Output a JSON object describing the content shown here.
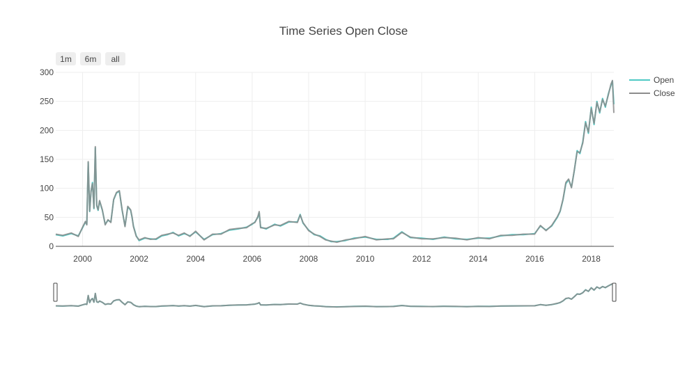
{
  "chart_data": {
    "type": "line",
    "title": "Time Series Open Close",
    "xlabel": "",
    "ylabel": "",
    "xlim": [
      1999.05,
      2018.8
    ],
    "ylim": [
      0,
      300
    ],
    "x_ticks": [
      "2000",
      "2002",
      "2004",
      "2006",
      "2008",
      "2010",
      "2012",
      "2014",
      "2016",
      "2018"
    ],
    "y_ticks": [
      "0",
      "50",
      "100",
      "150",
      "200",
      "250",
      "300"
    ],
    "grid": true,
    "legend": "top-right",
    "range_buttons": [
      "1m",
      "6m",
      "all"
    ],
    "range_slider": true,
    "x": [
      1999.05,
      1999.3,
      1999.6,
      1999.85,
      2000.0,
      2000.1,
      2000.15,
      2000.2,
      2000.25,
      2000.3,
      2000.35,
      2000.4,
      2000.45,
      2000.5,
      2000.55,
      2000.6,
      2000.7,
      2000.8,
      2000.9,
      2001.0,
      2001.1,
      2001.2,
      2001.3,
      2001.4,
      2001.5,
      2001.6,
      2001.7,
      2001.75,
      2001.8,
      2001.9,
      2002.0,
      2002.2,
      2002.4,
      2002.6,
      2002.8,
      2003.0,
      2003.2,
      2003.4,
      2003.6,
      2003.8,
      2004.0,
      2004.3,
      2004.6,
      2004.9,
      2005.2,
      2005.5,
      2005.8,
      2006.0,
      2006.1,
      2006.2,
      2006.25,
      2006.3,
      2006.5,
      2006.8,
      2007.0,
      2007.3,
      2007.6,
      2007.7,
      2007.8,
      2008.0,
      2008.2,
      2008.4,
      2008.6,
      2008.8,
      2009.0,
      2009.3,
      2009.6,
      2010.0,
      2010.4,
      2010.8,
      2011.0,
      2011.3,
      2011.6,
      2012.0,
      2012.4,
      2012.8,
      2013.2,
      2013.6,
      2014.0,
      2014.4,
      2014.8,
      2015.2,
      2015.6,
      2016.0,
      2016.2,
      2016.4,
      2016.6,
      2016.8,
      2016.9,
      2017.0,
      2017.1,
      2017.2,
      2017.3,
      2017.4,
      2017.5,
      2017.6,
      2017.7,
      2017.8,
      2017.9,
      2018.0,
      2018.1,
      2018.2,
      2018.3,
      2018.4,
      2018.5,
      2018.6,
      2018.7,
      2018.75,
      2018.8
    ],
    "series": [
      {
        "name": "Open",
        "color": "#4ec9c4",
        "values": [
          20,
          18,
          22,
          18,
          32,
          42,
          38,
          145,
          60,
          95,
          110,
          65,
          170,
          70,
          62,
          78,
          62,
          38,
          45,
          42,
          80,
          92,
          95,
          62,
          35,
          68,
          62,
          50,
          35,
          18,
          10,
          14,
          13,
          12,
          18,
          20,
          24,
          18,
          22,
          18,
          25,
          12,
          20,
          22,
          28,
          30,
          33,
          38,
          42,
          50,
          58,
          33,
          30,
          38,
          35,
          42,
          42,
          55,
          40,
          28,
          20,
          18,
          12,
          8,
          8,
          10,
          14,
          16,
          12,
          12,
          14,
          25,
          15,
          14,
          12,
          16,
          13,
          12,
          14,
          14,
          18,
          20,
          20,
          22,
          35,
          28,
          35,
          50,
          60,
          80,
          108,
          115,
          102,
          130,
          165,
          160,
          180,
          215,
          195,
          240,
          210,
          250,
          230,
          255,
          240,
          262,
          278,
          285,
          245
        ]
      },
      {
        "name": "Close",
        "color": "#8c8c8c",
        "values": [
          21,
          19,
          23,
          17,
          33,
          43,
          37,
          146,
          61,
          96,
          108,
          66,
          172,
          71,
          63,
          79,
          63,
          37,
          46,
          41,
          81,
          93,
          96,
          63,
          34,
          69,
          63,
          51,
          34,
          17,
          11,
          15,
          12,
          13,
          19,
          21,
          23,
          19,
          23,
          17,
          26,
          11,
          21,
          21,
          29,
          31,
          32,
          39,
          41,
          51,
          60,
          32,
          31,
          37,
          36,
          43,
          41,
          54,
          41,
          27,
          21,
          17,
          11,
          9,
          7,
          11,
          13,
          17,
          11,
          13,
          13,
          24,
          16,
          13,
          13,
          15,
          14,
          11,
          15,
          13,
          19,
          19,
          21,
          21,
          36,
          27,
          36,
          51,
          61,
          81,
          110,
          116,
          101,
          131,
          163,
          162,
          178,
          213,
          197,
          238,
          212,
          248,
          232,
          253,
          242,
          260,
          280,
          286,
          230
        ]
      }
    ]
  }
}
